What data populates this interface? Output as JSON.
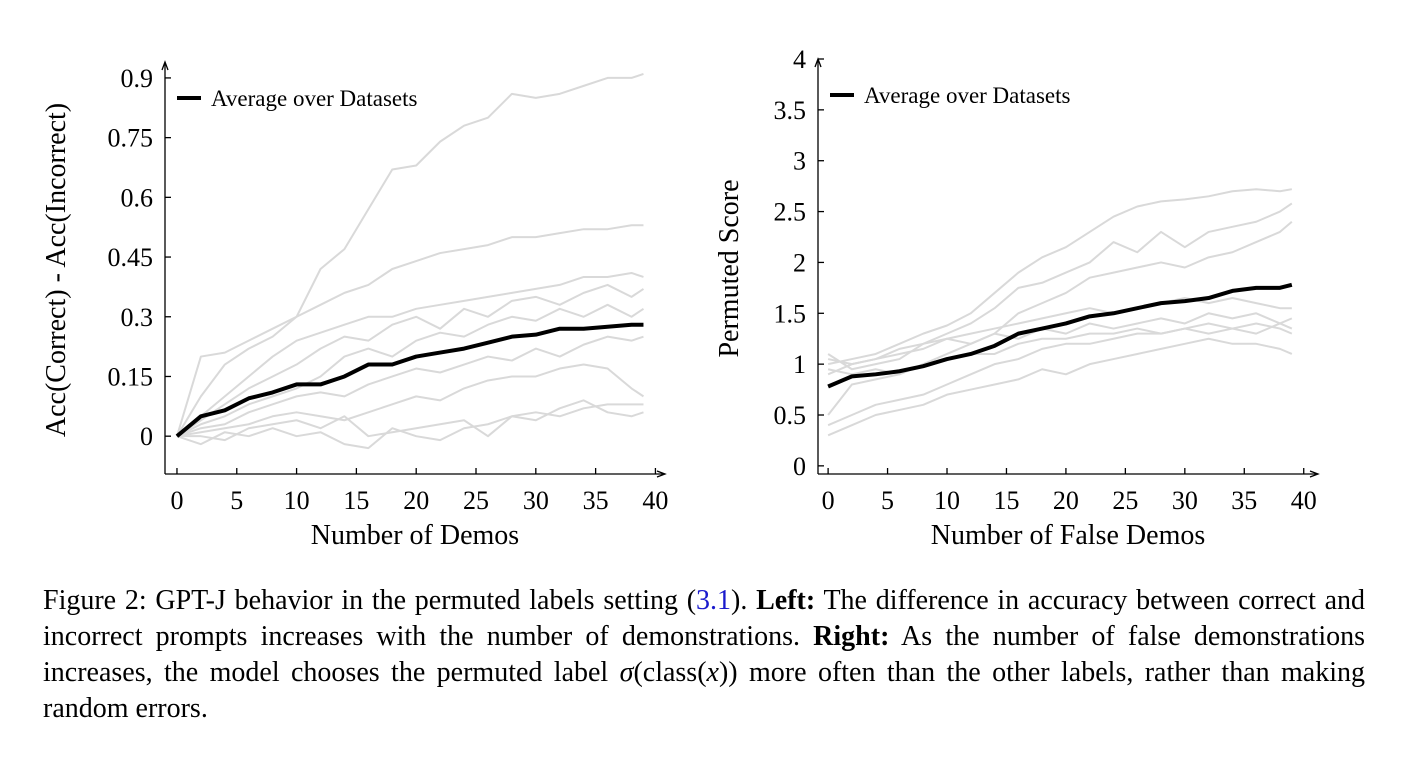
{
  "chart_data": [
    {
      "type": "line",
      "xlabel": "Number of Demos",
      "ylabel": "Acc(Correct) - Acc(Incorrect)",
      "x": [
        0,
        2,
        4,
        6,
        8,
        10,
        12,
        14,
        16,
        18,
        20,
        22,
        24,
        26,
        28,
        30,
        32,
        34,
        36,
        38,
        39
      ],
      "series": [
        {
          "color": "#d9d9d9",
          "values": [
            0,
            0.2,
            0.21,
            0.24,
            0.27,
            0.3,
            0.42,
            0.47,
            0.57,
            0.67,
            0.68,
            0.74,
            0.78,
            0.8,
            0.86,
            0.85,
            0.86,
            0.88,
            0.9,
            0.9,
            0.91
          ]
        },
        {
          "color": "#d9d9d9",
          "values": [
            0,
            0.1,
            0.18,
            0.22,
            0.25,
            0.3,
            0.33,
            0.36,
            0.38,
            0.42,
            0.44,
            0.46,
            0.47,
            0.48,
            0.5,
            0.5,
            0.51,
            0.52,
            0.52,
            0.53,
            0.53
          ]
        },
        {
          "color": "#d9d9d9",
          "values": [
            0,
            0.05,
            0.1,
            0.15,
            0.2,
            0.24,
            0.26,
            0.28,
            0.3,
            0.3,
            0.32,
            0.33,
            0.34,
            0.35,
            0.36,
            0.37,
            0.38,
            0.4,
            0.4,
            0.41,
            0.4
          ]
        },
        {
          "color": "#d9d9d9",
          "values": [
            0,
            0.04,
            0.08,
            0.12,
            0.15,
            0.18,
            0.22,
            0.25,
            0.24,
            0.28,
            0.3,
            0.27,
            0.32,
            0.3,
            0.34,
            0.35,
            0.33,
            0.36,
            0.38,
            0.35,
            0.37
          ]
        },
        {
          "color": "#d9d9d9",
          "values": [
            0,
            0.03,
            0.05,
            0.08,
            0.1,
            0.12,
            0.15,
            0.2,
            0.22,
            0.2,
            0.24,
            0.26,
            0.25,
            0.28,
            0.3,
            0.29,
            0.32,
            0.3,
            0.33,
            0.3,
            0.32
          ]
        },
        {
          "color": "#d9d9d9",
          "values": [
            0,
            0.02,
            0.03,
            0.06,
            0.08,
            0.1,
            0.11,
            0.1,
            0.13,
            0.15,
            0.17,
            0.16,
            0.18,
            0.2,
            0.19,
            0.22,
            0.2,
            0.23,
            0.25,
            0.24,
            0.25
          ]
        },
        {
          "color": "#d9d9d9",
          "values": [
            0,
            0.01,
            0.02,
            0.03,
            0.05,
            0.06,
            0.05,
            0.04,
            0.06,
            0.08,
            0.1,
            0.09,
            0.12,
            0.14,
            0.15,
            0.15,
            0.17,
            0.18,
            0.17,
            0.12,
            0.1
          ]
        },
        {
          "color": "#d9d9d9",
          "values": [
            0,
            -0.02,
            0.01,
            0,
            0.02,
            0,
            0.01,
            -0.02,
            -0.03,
            0.02,
            0,
            -0.01,
            0.02,
            0.03,
            0.05,
            0.06,
            0.05,
            0.07,
            0.08,
            0.08,
            0.08
          ]
        },
        {
          "color": "#d9d9d9",
          "values": [
            0,
            0,
            -0.01,
            0.02,
            0.03,
            0.04,
            0.02,
            0.05,
            0,
            0.01,
            0.02,
            0.03,
            0.04,
            0,
            0.05,
            0.04,
            0.07,
            0.09,
            0.06,
            0.05,
            0.06
          ]
        },
        {
          "name": "Average over Datasets",
          "color": "#000000",
          "values": [
            0,
            0.05,
            0.065,
            0.095,
            0.11,
            0.13,
            0.13,
            0.15,
            0.18,
            0.18,
            0.2,
            0.21,
            0.22,
            0.235,
            0.25,
            0.255,
            0.27,
            0.27,
            0.275,
            0.28,
            0.28
          ]
        }
      ],
      "xlim": [
        -1,
        40.8
      ],
      "xticks": [
        0,
        5,
        10,
        15,
        20,
        25,
        30,
        35,
        40
      ],
      "ylim": [
        -0.095,
        0.94
      ],
      "yticks": [
        0,
        0.15,
        0.3,
        0.45,
        0.6,
        0.75,
        0.9
      ],
      "legend": "upper left"
    },
    {
      "type": "line",
      "xlabel": "Number of False Demos",
      "ylabel": "Permuted Score",
      "x": [
        0,
        2,
        4,
        6,
        8,
        10,
        12,
        14,
        16,
        18,
        20,
        22,
        24,
        26,
        28,
        30,
        32,
        34,
        36,
        38,
        39
      ],
      "series": [
        {
          "color": "#d9d9d9",
          "values": [
            1.0,
            1.05,
            1.1,
            1.2,
            1.3,
            1.38,
            1.5,
            1.7,
            1.9,
            2.05,
            2.15,
            2.3,
            2.45,
            2.55,
            2.6,
            2.62,
            2.65,
            2.7,
            2.72,
            2.7,
            2.72
          ]
        },
        {
          "color": "#d9d9d9",
          "values": [
            0.9,
            1.0,
            1.05,
            1.15,
            1.2,
            1.3,
            1.4,
            1.55,
            1.75,
            1.8,
            1.9,
            2.0,
            2.2,
            2.1,
            2.3,
            2.15,
            2.3,
            2.35,
            2.4,
            2.5,
            2.58
          ]
        },
        {
          "color": "#d9d9d9",
          "values": [
            0.5,
            0.8,
            0.85,
            0.9,
            1.0,
            1.1,
            1.2,
            1.3,
            1.5,
            1.6,
            1.7,
            1.85,
            1.9,
            1.95,
            2.0,
            1.95,
            2.05,
            2.1,
            2.2,
            2.3,
            2.4
          ]
        },
        {
          "color": "#d9d9d9",
          "values": [
            1.05,
            1.0,
            1.05,
            1.1,
            1.15,
            1.25,
            1.3,
            1.35,
            1.4,
            1.45,
            1.5,
            1.55,
            1.5,
            1.55,
            1.6,
            1.65,
            1.6,
            1.65,
            1.6,
            1.55,
            1.55
          ]
        },
        {
          "color": "#d9d9d9",
          "values": [
            1.1,
            0.95,
            1.0,
            1.05,
            1.2,
            1.25,
            1.2,
            1.3,
            1.25,
            1.35,
            1.3,
            1.4,
            1.35,
            1.4,
            1.45,
            1.4,
            1.5,
            1.45,
            1.5,
            1.4,
            1.45
          ]
        },
        {
          "color": "#d9d9d9",
          "values": [
            0.95,
            0.9,
            0.95,
            0.9,
            1.0,
            1.05,
            1.1,
            1.1,
            1.2,
            1.25,
            1.25,
            1.3,
            1.3,
            1.35,
            1.3,
            1.35,
            1.4,
            1.35,
            1.4,
            1.35,
            1.3
          ]
        },
        {
          "color": "#d9d9d9",
          "values": [
            0.4,
            0.5,
            0.6,
            0.65,
            0.7,
            0.8,
            0.9,
            1.0,
            1.05,
            1.15,
            1.2,
            1.2,
            1.25,
            1.3,
            1.3,
            1.35,
            1.3,
            1.35,
            1.3,
            1.4,
            1.35
          ]
        },
        {
          "color": "#d9d9d9",
          "values": [
            0.3,
            0.4,
            0.5,
            0.55,
            0.6,
            0.7,
            0.75,
            0.8,
            0.85,
            0.95,
            0.9,
            1.0,
            1.05,
            1.1,
            1.15,
            1.2,
            1.25,
            1.2,
            1.2,
            1.15,
            1.1
          ]
        },
        {
          "name": "Average over Datasets",
          "color": "#000000",
          "values": [
            0.78,
            0.88,
            0.9,
            0.93,
            0.98,
            1.05,
            1.1,
            1.18,
            1.3,
            1.35,
            1.4,
            1.47,
            1.5,
            1.55,
            1.6,
            1.62,
            1.65,
            1.72,
            1.75,
            1.75,
            1.78
          ]
        }
      ],
      "xlim": [
        -0.85,
        41.2
      ],
      "xticks": [
        0,
        5,
        10,
        15,
        20,
        25,
        30,
        35,
        40
      ],
      "ylim": [
        -0.08,
        4
      ],
      "yticks": [
        0,
        0.5,
        1,
        1.5,
        2,
        2.5,
        3,
        3.5,
        4
      ],
      "legend": "upper left"
    }
  ],
  "caption": {
    "intro": "Figure 2: GPT-J behavior in the permuted labels setting (",
    "ref": "3.1",
    "after_ref": ").",
    "left_label": "Left:",
    "left_text": "The difference in accuracy between correct and incorrect prompts increases with the number of demonstrations.",
    "right_label": "Right:",
    "right_text": "As the number of false demonstrations increases, the model chooses the permuted label",
    "math_sigma": "σ",
    "math_open": "(class(",
    "math_x": "x",
    "math_close": "))",
    "end_text": "more often than the other labels, rather than making random errors."
  }
}
